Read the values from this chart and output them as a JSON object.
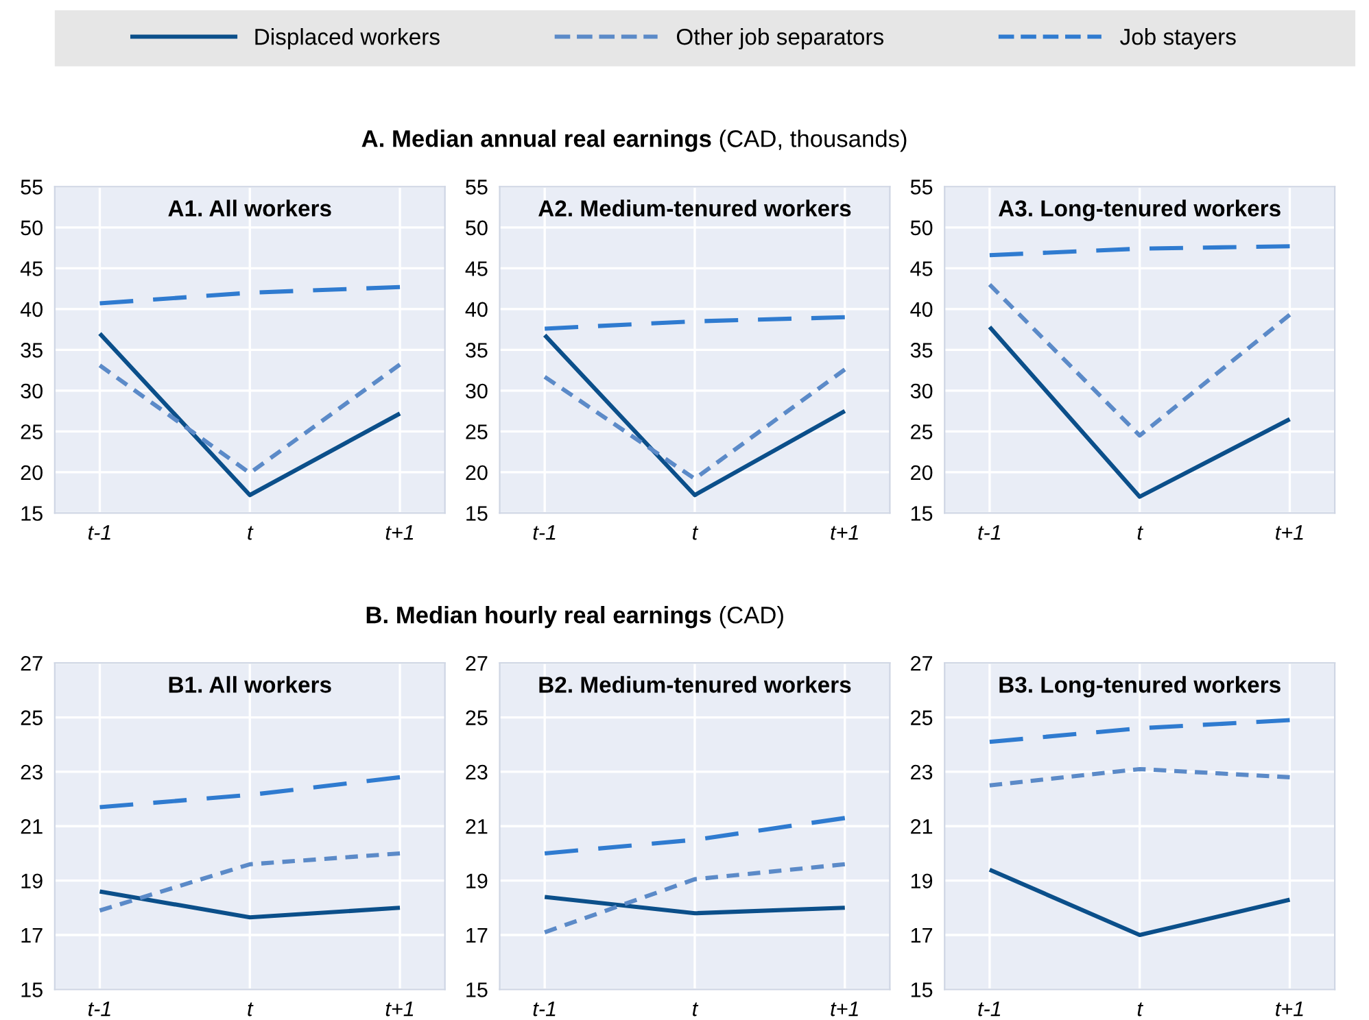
{
  "chart_data": [
    {
      "type": "line",
      "title": "A1. All workers",
      "subtitle": "A. Median annual real earnings (CAD, thousands)",
      "categories": [
        "t-1",
        "t",
        "t+1"
      ],
      "ylim": [
        15,
        55
      ],
      "yticks": [
        15,
        20,
        25,
        30,
        35,
        40,
        45,
        50,
        55
      ],
      "grid": true,
      "legend": "top",
      "series": [
        {
          "name": "Displaced workers",
          "color": "#0b4f8a",
          "line_style": "solid",
          "values": [
            37.0,
            17.2,
            27.2
          ]
        },
        {
          "name": "Other job separators",
          "color": "#5b8ac8",
          "line_style": "dotted",
          "values": [
            33.1,
            19.9,
            33.2
          ]
        },
        {
          "name": "Job stayers",
          "color": "#2f7bd0",
          "line_style": "dashed",
          "values": [
            40.7,
            42.0,
            42.7
          ]
        }
      ]
    },
    {
      "type": "line",
      "title": "A2. Medium-tenured workers",
      "categories": [
        "t-1",
        "t",
        "t+1"
      ],
      "ylim": [
        15,
        55
      ],
      "yticks": [
        15,
        20,
        25,
        30,
        35,
        40,
        45,
        50,
        55
      ],
      "grid": true,
      "series": [
        {
          "color": "#0b4f8a",
          "line_style": "solid",
          "values": [
            36.8,
            17.2,
            27.5
          ]
        },
        {
          "color": "#5b8ac8",
          "line_style": "dotted",
          "values": [
            31.7,
            19.2,
            32.6
          ]
        },
        {
          "color": "#2f7bd0",
          "line_style": "dashed",
          "values": [
            37.6,
            38.5,
            39.0
          ]
        }
      ]
    },
    {
      "type": "line",
      "title": "A3. Long-tenured workers",
      "categories": [
        "t-1",
        "t",
        "t+1"
      ],
      "ylim": [
        15,
        55
      ],
      "yticks": [
        15,
        20,
        25,
        30,
        35,
        40,
        45,
        50,
        55
      ],
      "grid": true,
      "series": [
        {
          "color": "#0b4f8a",
          "line_style": "solid",
          "values": [
            37.8,
            17.0,
            26.5
          ]
        },
        {
          "color": "#5b8ac8",
          "line_style": "dotted",
          "values": [
            43.0,
            24.5,
            39.3
          ]
        },
        {
          "color": "#2f7bd0",
          "line_style": "dashed",
          "values": [
            46.6,
            47.4,
            47.7
          ]
        }
      ]
    },
    {
      "type": "line",
      "title": "B1. All workers",
      "subtitle": "B. Median hourly real earnings (CAD)",
      "categories": [
        "t-1",
        "t",
        "t+1"
      ],
      "ylim": [
        15,
        27
      ],
      "yticks": [
        15,
        17,
        19,
        21,
        23,
        25,
        27
      ],
      "grid": true,
      "series": [
        {
          "color": "#0b4f8a",
          "line_style": "solid",
          "values": [
            18.6,
            17.65,
            18.0
          ]
        },
        {
          "color": "#5b8ac8",
          "line_style": "dotted",
          "values": [
            17.9,
            19.6,
            20.0
          ]
        },
        {
          "color": "#2f7bd0",
          "line_style": "dashed",
          "values": [
            21.7,
            22.15,
            22.8
          ]
        }
      ]
    },
    {
      "type": "line",
      "title": "B2. Medium-tenured workers",
      "categories": [
        "t-1",
        "t",
        "t+1"
      ],
      "ylim": [
        15,
        27
      ],
      "yticks": [
        15,
        17,
        19,
        21,
        23,
        25,
        27
      ],
      "grid": true,
      "series": [
        {
          "color": "#0b4f8a",
          "line_style": "solid",
          "values": [
            18.4,
            17.8,
            18.0
          ]
        },
        {
          "color": "#5b8ac8",
          "line_style": "dotted",
          "values": [
            17.1,
            19.05,
            19.6
          ]
        },
        {
          "color": "#2f7bd0",
          "line_style": "dashed",
          "values": [
            20.0,
            20.5,
            21.3
          ]
        }
      ]
    },
    {
      "type": "line",
      "title": "B3. Long-tenured workers",
      "categories": [
        "t-1",
        "t",
        "t+1"
      ],
      "ylim": [
        15,
        27
      ],
      "yticks": [
        15,
        17,
        19,
        21,
        23,
        25,
        27
      ],
      "grid": true,
      "series": [
        {
          "color": "#0b4f8a",
          "line_style": "solid",
          "values": [
            19.4,
            17.0,
            18.3
          ]
        },
        {
          "color": "#5b8ac8",
          "line_style": "dotted",
          "values": [
            22.5,
            23.1,
            22.8
          ]
        },
        {
          "color": "#2f7bd0",
          "line_style": "dashed",
          "values": [
            24.1,
            24.6,
            24.9
          ]
        }
      ]
    }
  ]
}
